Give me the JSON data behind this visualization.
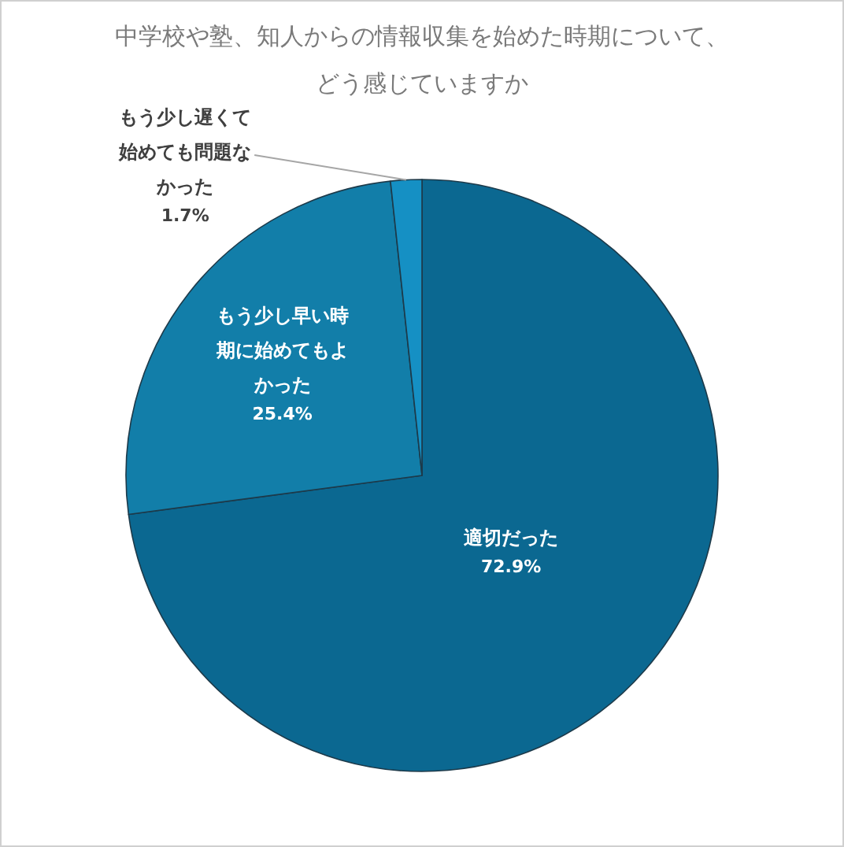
{
  "chart_data": {
    "type": "pie",
    "title": "中学校や塾、知人からの情報収集を始めた時期について、どう感じていますか",
    "categories": [
      "適切だった",
      "もう少し早い時期に始めてもよかった",
      "もう少し遅くて始めても問題なかった"
    ],
    "values": [
      72.9,
      25.4,
      1.7
    ],
    "value_labels": [
      "72.9%",
      "25.4%",
      "1.7%"
    ],
    "colors": [
      "#0b6891",
      "#127ea9",
      "#1590c4"
    ]
  }
}
